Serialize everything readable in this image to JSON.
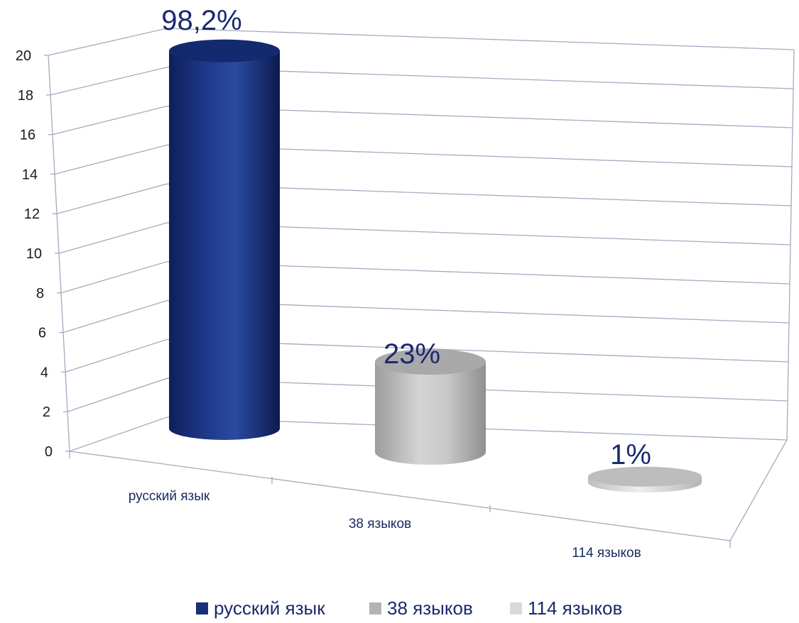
{
  "chart_data": {
    "type": "bar",
    "style": "3d-cylinder",
    "title": "",
    "xlabel": "",
    "ylabel": "",
    "categories": [
      "русский язык",
      "38 языков",
      "114 языков"
    ],
    "series": [
      {
        "name": "русский язык",
        "values": [
          19.5,
          null,
          null
        ],
        "data_label": "98,2%",
        "color": "#1a2f7a"
      },
      {
        "name": "38 языков",
        "values": [
          null,
          4.6,
          null
        ],
        "data_label": "23%",
        "color": "#b9b9b9"
      },
      {
        "name": "114 языков",
        "values": [
          null,
          null,
          0.3
        ],
        "data_label": "1%",
        "color": "#d6d6d6"
      }
    ],
    "ylim": [
      0,
      20
    ],
    "yticks": [
      0,
      2,
      4,
      6,
      8,
      10,
      12,
      14,
      16,
      18,
      20
    ],
    "grid": true,
    "legend_position": "bottom"
  }
}
